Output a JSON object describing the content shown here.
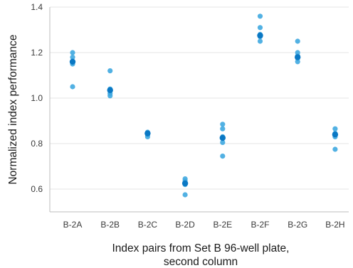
{
  "chart_data": {
    "type": "scatter",
    "title": "",
    "xlabel_line1": "Index pairs from Set B 96-well plate,",
    "xlabel_line2": "second column",
    "ylabel": "Normalized index performance",
    "categories": [
      "B-2A",
      "B-2B",
      "B-2C",
      "B-2D",
      "B-2E",
      "B-2F",
      "B-2G",
      "B-2H"
    ],
    "ylim": [
      0.5,
      1.4
    ],
    "yticks": [
      0.6,
      0.8,
      1.0,
      1.2,
      1.4
    ],
    "ytick_labels": [
      "0.6",
      "0.8",
      "1.0",
      "1.2",
      "1.4"
    ],
    "grid": "horizontal",
    "points": [
      [
        1.2,
        1.18,
        1.16,
        1.15,
        1.05
      ],
      [
        1.12,
        1.04,
        1.03,
        1.02,
        1.01
      ],
      [
        0.85,
        0.84,
        0.84,
        0.83
      ],
      [
        0.645,
        0.635,
        0.625,
        0.62,
        0.575
      ],
      [
        0.885,
        0.865,
        0.83,
        0.805,
        0.745
      ],
      [
        1.36,
        1.31,
        1.28,
        1.27,
        1.25
      ],
      [
        1.25,
        1.2,
        1.185,
        1.175,
        1.16
      ],
      [
        0.865,
        0.845,
        0.84,
        0.83,
        0.775
      ]
    ],
    "means": [
      1.16,
      1.035,
      0.845,
      0.625,
      0.825,
      1.275,
      1.18,
      0.84
    ],
    "point_color": "#3fa9e0",
    "mean_color": "#0a78c4"
  }
}
